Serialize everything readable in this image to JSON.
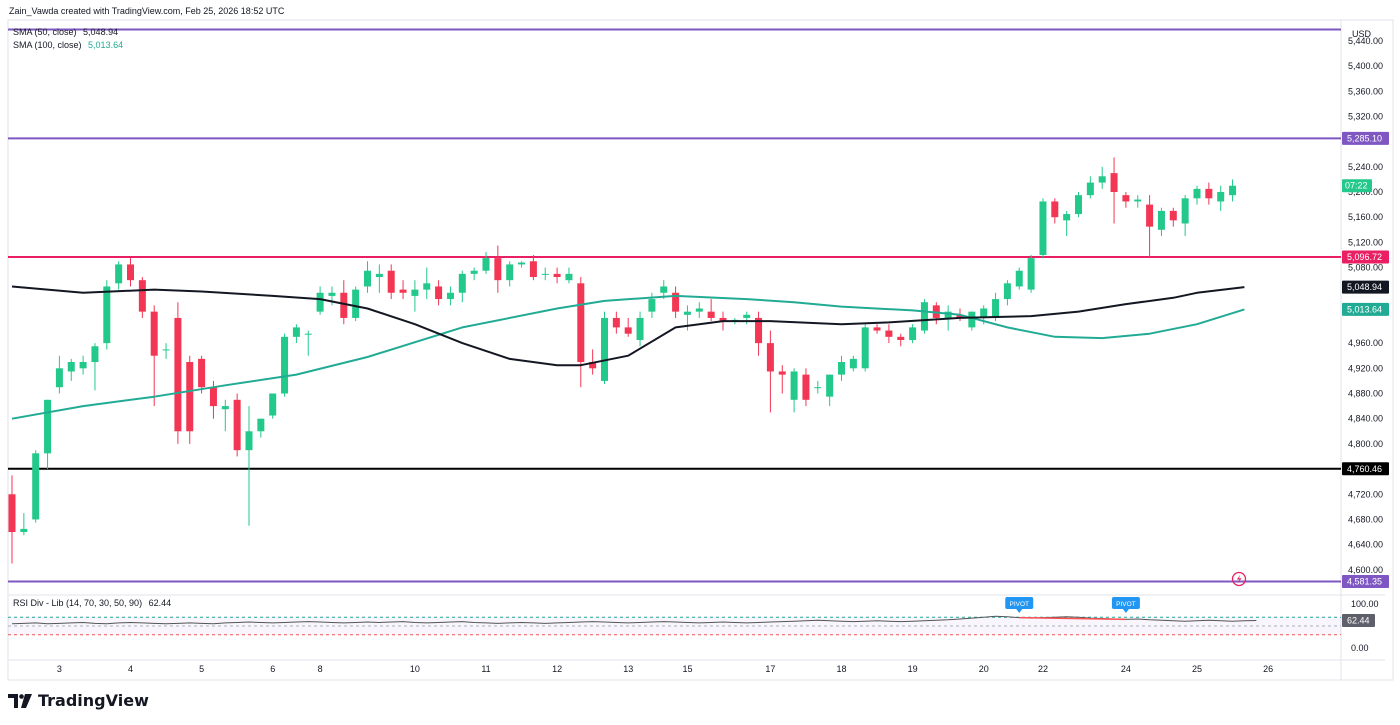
{
  "header": {
    "attribution": "Zain_Vawda created with TradingView.com, Feb 25, 2026 18:52 UTC"
  },
  "legend": {
    "sma50": {
      "name": "SMA (50, close)",
      "value": "5,048.94",
      "color": "#131722"
    },
    "sma100": {
      "name": "SMA (100, close)",
      "value": "5,013.64",
      "color": "#22ab94"
    }
  },
  "price_axis": {
    "currency": "USD",
    "ticks": [
      "5,440.00",
      "5,400.00",
      "5,360.00",
      "5,320.00",
      "5,240.00",
      "5,200.00",
      "5,160.00",
      "5,120.00",
      "5,080.00",
      "4,960.00",
      "4,920.00",
      "4,880.00",
      "4,840.00",
      "4,800.00",
      "4,720.00",
      "4,680.00",
      "4,640.00",
      "4,600.00"
    ],
    "countdown": "07:22",
    "badges": [
      {
        "id": "purple-top",
        "text": "5,285.10",
        "color": "#7e57c2",
        "price": 5285.1
      },
      {
        "id": "red-level",
        "text": "5,096.72",
        "color": "#e91e63",
        "price": 5096.72
      },
      {
        "id": "sma50",
        "text": "5,048.94",
        "color": "#131722",
        "price": 5048.94
      },
      {
        "id": "sma100",
        "text": "5,013.64",
        "color": "#22ab94",
        "price": 5013.64
      },
      {
        "id": "black-level",
        "text": "4,760.46",
        "color": "#000000",
        "price": 4760.46
      },
      {
        "id": "purple-bottom",
        "text": "4,581.35",
        "color": "#7e57c2",
        "price": 4581.35
      }
    ]
  },
  "rsi": {
    "label": "RSI Div - Lib (14, 70, 30, 50, 90)",
    "value": "62.44",
    "axis_ticks": [
      "100.00",
      "0.00"
    ],
    "pivot_label": "PIVOT"
  },
  "time_axis": {
    "labels": [
      "3",
      "4",
      "5",
      "6",
      "8",
      "10",
      "11",
      "12",
      "13",
      "15",
      "17",
      "18",
      "19",
      "20",
      "22",
      "24",
      "25",
      "26"
    ]
  },
  "brand": {
    "name": "TradingView"
  },
  "colors": {
    "up": "#22c98b",
    "down": "#f23654",
    "purple": "#7e57c2",
    "resistance": "#e91e63",
    "support": "#000000",
    "sma50": "#131722",
    "sma100": "#22ab94"
  },
  "chart_data": {
    "type": "candlestick",
    "interval": "4h",
    "ylim": [
      4560,
      5470
    ],
    "horizontal_levels": [
      5458,
      5285.1,
      5096.72,
      4760.46,
      4581.35
    ],
    "candles": [
      {
        "o": 4720,
        "h": 4750,
        "l": 4610,
        "c": 4660
      },
      {
        "o": 4660,
        "h": 4690,
        "l": 4655,
        "c": 4665
      },
      {
        "o": 4680,
        "h": 4790,
        "l": 4675,
        "c": 4785
      },
      {
        "o": 4785,
        "h": 4870,
        "l": 4760,
        "c": 4870
      },
      {
        "o": 4890,
        "h": 4940,
        "l": 4880,
        "c": 4920
      },
      {
        "o": 4915,
        "h": 4935,
        "l": 4900,
        "c": 4930
      },
      {
        "o": 4920,
        "h": 4940,
        "l": 4910,
        "c": 4930
      },
      {
        "o": 4930,
        "h": 4960,
        "l": 4885,
        "c": 4955
      },
      {
        "o": 4960,
        "h": 5060,
        "l": 4950,
        "c": 5050
      },
      {
        "o": 5055,
        "h": 5090,
        "l": 5045,
        "c": 5085
      },
      {
        "o": 5085,
        "h": 5095,
        "l": 5050,
        "c": 5060
      },
      {
        "o": 5060,
        "h": 5065,
        "l": 5000,
        "c": 5010
      },
      {
        "o": 5010,
        "h": 5020,
        "l": 4860,
        "c": 4940
      },
      {
        "o": 4950,
        "h": 4960,
        "l": 4935,
        "c": 4950
      },
      {
        "o": 5000,
        "h": 5025,
        "l": 4800,
        "c": 4820
      },
      {
        "o": 4930,
        "h": 4940,
        "l": 4800,
        "c": 4820
      },
      {
        "o": 4935,
        "h": 4940,
        "l": 4880,
        "c": 4890
      },
      {
        "o": 4890,
        "h": 4900,
        "l": 4840,
        "c": 4860
      },
      {
        "o": 4855,
        "h": 4870,
        "l": 4820,
        "c": 4860
      },
      {
        "o": 4870,
        "h": 4880,
        "l": 4780,
        "c": 4790
      },
      {
        "o": 4790,
        "h": 4860,
        "l": 4670,
        "c": 4820
      },
      {
        "o": 4820,
        "h": 4840,
        "l": 4810,
        "c": 4840
      },
      {
        "o": 4845,
        "h": 4880,
        "l": 4840,
        "c": 4880
      },
      {
        "o": 4880,
        "h": 4975,
        "l": 4875,
        "c": 4970
      },
      {
        "o": 4970,
        "h": 4990,
        "l": 4960,
        "c": 4985
      },
      {
        "o": 4975,
        "h": 4980,
        "l": 4940,
        "c": 4975
      },
      {
        "o": 5010,
        "h": 5050,
        "l": 5005,
        "c": 5040
      },
      {
        "o": 5035,
        "h": 5050,
        "l": 5020,
        "c": 5040
      },
      {
        "o": 5040,
        "h": 5060,
        "l": 4990,
        "c": 5000
      },
      {
        "o": 5000,
        "h": 5050,
        "l": 4995,
        "c": 5045
      },
      {
        "o": 5050,
        "h": 5090,
        "l": 5040,
        "c": 5075
      },
      {
        "o": 5065,
        "h": 5085,
        "l": 5040,
        "c": 5070
      },
      {
        "o": 5075,
        "h": 5085,
        "l": 5030,
        "c": 5040
      },
      {
        "o": 5045,
        "h": 5060,
        "l": 5030,
        "c": 5040
      },
      {
        "o": 5035,
        "h": 5060,
        "l": 5010,
        "c": 5045
      },
      {
        "o": 5045,
        "h": 5080,
        "l": 5030,
        "c": 5055
      },
      {
        "o": 5050,
        "h": 5060,
        "l": 5020,
        "c": 5030
      },
      {
        "o": 5030,
        "h": 5050,
        "l": 5020,
        "c": 5040
      },
      {
        "o": 5040,
        "h": 5075,
        "l": 5025,
        "c": 5070
      },
      {
        "o": 5070,
        "h": 5080,
        "l": 5060,
        "c": 5075
      },
      {
        "o": 5075,
        "h": 5105,
        "l": 5070,
        "c": 5095
      },
      {
        "o": 5095,
        "h": 5115,
        "l": 5040,
        "c": 5060
      },
      {
        "o": 5060,
        "h": 5090,
        "l": 5050,
        "c": 5085
      },
      {
        "o": 5085,
        "h": 5090,
        "l": 5080,
        "c": 5088
      },
      {
        "o": 5090,
        "h": 5100,
        "l": 5060,
        "c": 5065
      },
      {
        "o": 5070,
        "h": 5080,
        "l": 5060,
        "c": 5070
      },
      {
        "o": 5070,
        "h": 5080,
        "l": 5055,
        "c": 5065
      },
      {
        "o": 5060,
        "h": 5080,
        "l": 5055,
        "c": 5070
      },
      {
        "o": 5055,
        "h": 5065,
        "l": 4890,
        "c": 4930
      },
      {
        "o": 4930,
        "h": 4950,
        "l": 4910,
        "c": 4920
      },
      {
        "o": 4900,
        "h": 5010,
        "l": 4895,
        "c": 5000
      },
      {
        "o": 5000,
        "h": 5010,
        "l": 4975,
        "c": 4985
      },
      {
        "o": 4985,
        "h": 5000,
        "l": 4970,
        "c": 4975
      },
      {
        "o": 4965,
        "h": 5010,
        "l": 4955,
        "c": 5000
      },
      {
        "o": 5010,
        "h": 5040,
        "l": 5000,
        "c": 5030
      },
      {
        "o": 5040,
        "h": 5060,
        "l": 5030,
        "c": 5050
      },
      {
        "o": 5040,
        "h": 5050,
        "l": 5000,
        "c": 5010
      },
      {
        "o": 5005,
        "h": 5020,
        "l": 4980,
        "c": 5010
      },
      {
        "o": 5010,
        "h": 5025,
        "l": 5000,
        "c": 5015
      },
      {
        "o": 5010,
        "h": 5030,
        "l": 4995,
        "c": 5000
      },
      {
        "o": 5000,
        "h": 5010,
        "l": 4980,
        "c": 4995
      },
      {
        "o": 4995,
        "h": 5000,
        "l": 4990,
        "c": 4997
      },
      {
        "o": 5000,
        "h": 5010,
        "l": 4990,
        "c": 5005
      },
      {
        "o": 5000,
        "h": 5010,
        "l": 4940,
        "c": 4960
      },
      {
        "o": 4960,
        "h": 4980,
        "l": 4850,
        "c": 4915
      },
      {
        "o": 4915,
        "h": 4925,
        "l": 4880,
        "c": 4910
      },
      {
        "o": 4870,
        "h": 4920,
        "l": 4850,
        "c": 4915
      },
      {
        "o": 4910,
        "h": 4920,
        "l": 4860,
        "c": 4870
      },
      {
        "o": 4890,
        "h": 4900,
        "l": 4880,
        "c": 4890
      },
      {
        "o": 4875,
        "h": 4910,
        "l": 4860,
        "c": 4910
      },
      {
        "o": 4910,
        "h": 4940,
        "l": 4900,
        "c": 4930
      },
      {
        "o": 4920,
        "h": 4940,
        "l": 4915,
        "c": 4935
      },
      {
        "o": 4920,
        "h": 4990,
        "l": 4915,
        "c": 4985
      },
      {
        "o": 4985,
        "h": 4990,
        "l": 4975,
        "c": 4980
      },
      {
        "o": 4980,
        "h": 4990,
        "l": 4960,
        "c": 4970
      },
      {
        "o": 4970,
        "h": 4975,
        "l": 4955,
        "c": 4965
      },
      {
        "o": 4965,
        "h": 4990,
        "l": 4960,
        "c": 4985
      },
      {
        "o": 4980,
        "h": 5030,
        "l": 4975,
        "c": 5025
      },
      {
        "o": 5020,
        "h": 5025,
        "l": 4990,
        "c": 5000
      },
      {
        "o": 5000,
        "h": 5020,
        "l": 4980,
        "c": 5010
      },
      {
        "o": 5005,
        "h": 5015,
        "l": 4995,
        "c": 5000
      },
      {
        "o": 4985,
        "h": 5010,
        "l": 4980,
        "c": 5010
      },
      {
        "o": 5000,
        "h": 5020,
        "l": 4990,
        "c": 5015
      },
      {
        "o": 5000,
        "h": 5040,
        "l": 4995,
        "c": 5030
      },
      {
        "o": 5030,
        "h": 5060,
        "l": 5020,
        "c": 5055
      },
      {
        "o": 5050,
        "h": 5080,
        "l": 5045,
        "c": 5075
      },
      {
        "o": 5045,
        "h": 5100,
        "l": 5040,
        "c": 5095
      },
      {
        "o": 5100,
        "h": 5190,
        "l": 5095,
        "c": 5185
      },
      {
        "o": 5185,
        "h": 5190,
        "l": 5150,
        "c": 5160
      },
      {
        "o": 5155,
        "h": 5170,
        "l": 5130,
        "c": 5165
      },
      {
        "o": 5165,
        "h": 5200,
        "l": 5160,
        "c": 5195
      },
      {
        "o": 5195,
        "h": 5225,
        "l": 5190,
        "c": 5215
      },
      {
        "o": 5215,
        "h": 5240,
        "l": 5205,
        "c": 5225
      },
      {
        "o": 5230,
        "h": 5255,
        "l": 5150,
        "c": 5200
      },
      {
        "o": 5195,
        "h": 5200,
        "l": 5175,
        "c": 5185
      },
      {
        "o": 5185,
        "h": 5195,
        "l": 5175,
        "c": 5188
      },
      {
        "o": 5180,
        "h": 5195,
        "l": 5095,
        "c": 5145
      },
      {
        "o": 5140,
        "h": 5175,
        "l": 5130,
        "c": 5170
      },
      {
        "o": 5170,
        "h": 5175,
        "l": 5145,
        "c": 5155
      },
      {
        "o": 5150,
        "h": 5195,
        "l": 5130,
        "c": 5190
      },
      {
        "o": 5190,
        "h": 5210,
        "l": 5180,
        "c": 5205
      },
      {
        "o": 5205,
        "h": 5215,
        "l": 5180,
        "c": 5190
      },
      {
        "o": 5185,
        "h": 5210,
        "l": 5170,
        "c": 5200
      },
      {
        "o": 5195,
        "h": 5220,
        "l": 5185,
        "c": 5210
      }
    ],
    "sma50": [
      [
        0,
        5050
      ],
      [
        6,
        5040
      ],
      [
        12,
        5045
      ],
      [
        16,
        5042
      ],
      [
        22,
        5035
      ],
      [
        26,
        5030
      ],
      [
        30,
        5015
      ],
      [
        34,
        4990
      ],
      [
        38,
        4960
      ],
      [
        42,
        4935
      ],
      [
        46,
        4925
      ],
      [
        48,
        4925
      ],
      [
        52,
        4940
      ],
      [
        56,
        4985
      ],
      [
        60,
        4995
      ],
      [
        64,
        4995
      ],
      [
        70,
        4990
      ],
      [
        74,
        4993
      ],
      [
        80,
        5000
      ],
      [
        86,
        5003
      ],
      [
        90,
        5010
      ],
      [
        94,
        5022
      ],
      [
        98,
        5032
      ],
      [
        100,
        5040
      ],
      [
        104,
        5048.94
      ]
    ],
    "sma100": [
      [
        0,
        4840
      ],
      [
        6,
        4860
      ],
      [
        12,
        4875
      ],
      [
        18,
        4893
      ],
      [
        24,
        4910
      ],
      [
        30,
        4938
      ],
      [
        38,
        4985
      ],
      [
        46,
        5015
      ],
      [
        50,
        5027
      ],
      [
        56,
        5035
      ],
      [
        62,
        5030
      ],
      [
        66,
        5025
      ],
      [
        70,
        5018
      ],
      [
        76,
        5012
      ],
      [
        80,
        5005
      ],
      [
        84,
        4985
      ],
      [
        88,
        4970
      ],
      [
        92,
        4968
      ],
      [
        96,
        4975
      ],
      [
        100,
        4990
      ],
      [
        104,
        5013.64
      ]
    ],
    "rsi_series": [
      55,
      56,
      57,
      55,
      56,
      57,
      58,
      56,
      55,
      57,
      58,
      57,
      56,
      55,
      56,
      57,
      56,
      55,
      57,
      58,
      59,
      58,
      57,
      58,
      59,
      60,
      59,
      58,
      57,
      58,
      59,
      58,
      59,
      60,
      58,
      57,
      58,
      59,
      60,
      58,
      57,
      56,
      57,
      58,
      57,
      56,
      57,
      58,
      59,
      60,
      59,
      58,
      57,
      58,
      59,
      60,
      59,
      58,
      57,
      58,
      59,
      58,
      57,
      58,
      59,
      60,
      61,
      62,
      63,
      62,
      61,
      60,
      61,
      62,
      61,
      60,
      61,
      62,
      63,
      64,
      66,
      68,
      70,
      72,
      71,
      69,
      68,
      69,
      70,
      71,
      70,
      68,
      67,
      66,
      65,
      66,
      64,
      63,
      62,
      61,
      62,
      63,
      62,
      61,
      62,
      62.44
    ],
    "rsi_levels": {
      "upper": 70,
      "middle": 50,
      "lower": 30
    },
    "pivots": [
      {
        "bar": 85
      },
      {
        "bar": 94
      }
    ],
    "time_ticks": [
      {
        "label": "3",
        "bar": 4
      },
      {
        "label": "4",
        "bar": 10
      },
      {
        "label": "5",
        "bar": 16
      },
      {
        "label": "6",
        "bar": 22
      },
      {
        "label": "8",
        "bar": 26
      },
      {
        "label": "10",
        "bar": 34
      },
      {
        "label": "11",
        "bar": 40
      },
      {
        "label": "12",
        "bar": 46
      },
      {
        "label": "13",
        "bar": 52
      },
      {
        "label": "15",
        "bar": 57
      },
      {
        "label": "17",
        "bar": 64
      },
      {
        "label": "18",
        "bar": 70
      },
      {
        "label": "19",
        "bar": 76
      },
      {
        "label": "20",
        "bar": 82
      },
      {
        "label": "22",
        "bar": 87
      },
      {
        "label": "24",
        "bar": 94
      },
      {
        "label": "25",
        "bar": 100
      },
      {
        "label": "26",
        "bar": 106
      }
    ]
  }
}
